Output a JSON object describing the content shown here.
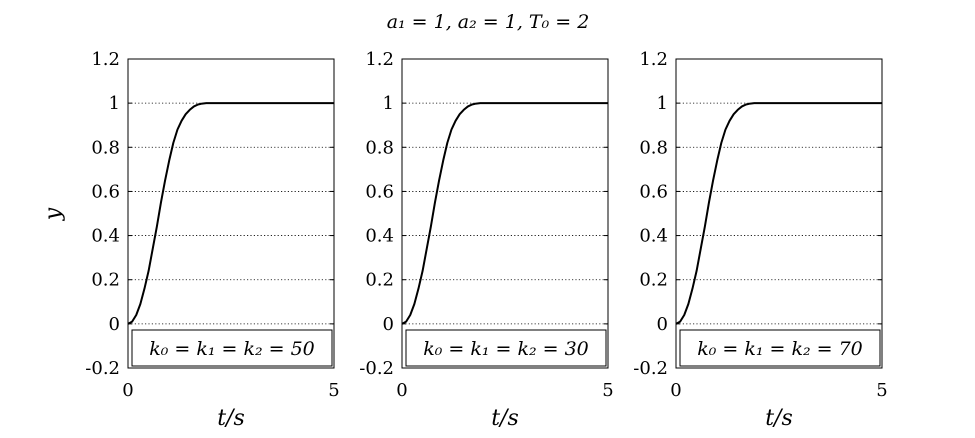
{
  "figure": {
    "title": "a₁ = 1, a₂ = 1, T₀ = 2",
    "ylabel": "y"
  },
  "chart_data": [
    {
      "type": "line",
      "title": "",
      "xlabel": "t/s",
      "ylabel": "y",
      "xlim": [
        0,
        5
      ],
      "ylim": [
        -0.2,
        1.2
      ],
      "x_ticks": [
        "0",
        "5"
      ],
      "y_ticks": [
        "-0.2",
        "0",
        "0.2",
        "0.4",
        "0.6",
        "0.8",
        "1",
        "1.2"
      ],
      "grid": "horizontal dotted",
      "annotation": "k₀ = k₁ = k₂ = 50",
      "series": [
        {
          "color": "#000000",
          "x": [
            0,
            0.1,
            0.2,
            0.3,
            0.4,
            0.5,
            0.6,
            0.7,
            0.8,
            0.9,
            1.0,
            1.1,
            1.2,
            1.3,
            1.4,
            1.5,
            1.6,
            1.7,
            1.8,
            1.9,
            2.0,
            2.5,
            3.0,
            3.5,
            4.0,
            4.5,
            5.0
          ],
          "values": [
            0,
            0.01,
            0.04,
            0.09,
            0.16,
            0.24,
            0.34,
            0.44,
            0.55,
            0.65,
            0.74,
            0.82,
            0.88,
            0.92,
            0.95,
            0.97,
            0.985,
            0.994,
            0.998,
            1.0,
            1.0,
            1.0,
            1.0,
            1.0,
            1.0,
            1.0,
            1.0
          ]
        }
      ]
    },
    {
      "type": "line",
      "title": "",
      "xlabel": "t/s",
      "ylabel": "",
      "xlim": [
        0,
        5
      ],
      "ylim": [
        -0.2,
        1.2
      ],
      "x_ticks": [
        "0",
        "5"
      ],
      "y_ticks": [
        "-0.2",
        "0",
        "0.2",
        "0.4",
        "0.6",
        "0.8",
        "1",
        "1.2"
      ],
      "grid": "horizontal dotted",
      "annotation": "k₀ = k₁ = k₂ = 30",
      "series": [
        {
          "color": "#000000",
          "x": [
            0,
            0.1,
            0.2,
            0.3,
            0.4,
            0.5,
            0.6,
            0.7,
            0.8,
            0.9,
            1.0,
            1.1,
            1.2,
            1.3,
            1.4,
            1.5,
            1.6,
            1.7,
            1.8,
            1.9,
            2.0,
            2.5,
            3.0,
            3.5,
            4.0,
            4.5,
            5.0
          ],
          "values": [
            0,
            0.01,
            0.04,
            0.09,
            0.16,
            0.24,
            0.34,
            0.44,
            0.55,
            0.65,
            0.74,
            0.82,
            0.88,
            0.92,
            0.95,
            0.97,
            0.985,
            0.994,
            0.998,
            1.0,
            1.0,
            1.0,
            1.0,
            1.0,
            1.0,
            1.0,
            1.0
          ]
        }
      ]
    },
    {
      "type": "line",
      "title": "",
      "xlabel": "t/s",
      "ylabel": "",
      "xlim": [
        0,
        5
      ],
      "ylim": [
        -0.2,
        1.2
      ],
      "x_ticks": [
        "0",
        "5"
      ],
      "y_ticks": [
        "-0.2",
        "0",
        "0.2",
        "0.4",
        "0.6",
        "0.8",
        "1",
        "1.2"
      ],
      "grid": "horizontal dotted",
      "annotation": "k₀ = k₁ = k₂ = 70",
      "series": [
        {
          "color": "#000000",
          "x": [
            0,
            0.1,
            0.2,
            0.3,
            0.4,
            0.5,
            0.6,
            0.7,
            0.8,
            0.9,
            1.0,
            1.1,
            1.2,
            1.3,
            1.4,
            1.5,
            1.6,
            1.7,
            1.8,
            1.9,
            2.0,
            2.5,
            3.0,
            3.5,
            4.0,
            4.5,
            5.0
          ],
          "values": [
            0,
            0.01,
            0.04,
            0.09,
            0.16,
            0.24,
            0.34,
            0.44,
            0.55,
            0.65,
            0.74,
            0.82,
            0.88,
            0.92,
            0.95,
            0.97,
            0.985,
            0.994,
            0.998,
            1.0,
            1.0,
            1.0,
            1.0,
            1.0,
            1.0,
            1.0,
            1.0
          ]
        }
      ]
    }
  ]
}
